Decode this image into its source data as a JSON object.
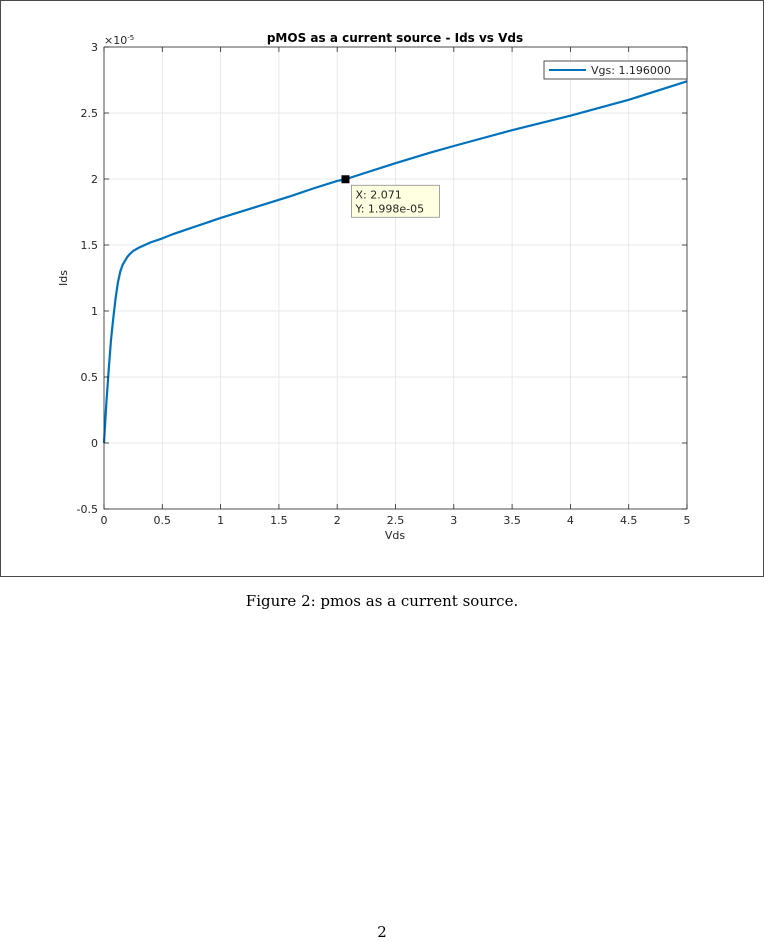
{
  "figure": {
    "caption": "Figure 2: pmos as a current source.",
    "page_number": "2"
  },
  "colors": {
    "line": "#0072BD",
    "grid": "#e3e3e3",
    "axis": "#262626",
    "datatip_bg": "#ffffe1",
    "datatip_border": "#8c8c8c"
  },
  "chart_data": {
    "type": "line",
    "title": "pMOS as a current source - Ids vs Vds",
    "xlabel": "Vds",
    "ylabel": "Ids",
    "xlim": [
      0,
      5
    ],
    "ylim": [
      -5e-06,
      3e-05
    ],
    "y_exponent_label": "×10",
    "y_exponent_power": "-5",
    "xticks": [
      "0",
      "0.5",
      "1",
      "1.5",
      "2",
      "2.5",
      "3",
      "3.5",
      "4",
      "4.5",
      "5"
    ],
    "xtick_values": [
      0,
      0.5,
      1,
      1.5,
      2,
      2.5,
      3,
      3.5,
      4,
      4.5,
      5
    ],
    "yticks": [
      "-0.5",
      "0",
      "0.5",
      "1",
      "1.5",
      "2",
      "2.5",
      "3"
    ],
    "ytick_values": [
      -5e-06,
      0,
      5e-06,
      1e-05,
      1.5e-05,
      2e-05,
      2.5e-05,
      3e-05
    ],
    "grid": true,
    "legend_position": "top-right",
    "series": [
      {
        "name": "Vgs: 1.196000",
        "x": [
          0,
          0.02,
          0.04,
          0.06,
          0.08,
          0.1,
          0.12,
          0.14,
          0.16,
          0.18,
          0.2,
          0.22,
          0.25,
          0.3,
          0.35,
          0.4,
          0.5,
          0.6,
          0.7,
          0.8,
          0.9,
          1.0,
          1.2,
          1.4,
          1.6,
          1.8,
          2.0,
          2.071,
          2.2,
          2.5,
          2.8,
          3.0,
          3.5,
          4.0,
          4.5,
          5.0
        ],
        "y": [
          0,
          3e-06,
          5.5e-06,
          7.8e-06,
          9.5e-06,
          1.1e-05,
          1.22e-05,
          1.3e-05,
          1.35e-05,
          1.38e-05,
          1.41e-05,
          1.43e-05,
          1.455e-05,
          1.48e-05,
          1.5e-05,
          1.52e-05,
          1.55e-05,
          1.585e-05,
          1.615e-05,
          1.645e-05,
          1.675e-05,
          1.705e-05,
          1.76e-05,
          1.815e-05,
          1.87e-05,
          1.93e-05,
          1.985e-05,
          1.998e-05,
          2.035e-05,
          2.12e-05,
          2.2e-05,
          2.25e-05,
          2.37e-05,
          2.48e-05,
          2.6e-05,
          2.74e-05
        ]
      }
    ],
    "datatip": {
      "x": 2.071,
      "y": 1.998e-05,
      "x_text": "X: 2.071",
      "y_text": "Y: 1.998e-05"
    }
  }
}
